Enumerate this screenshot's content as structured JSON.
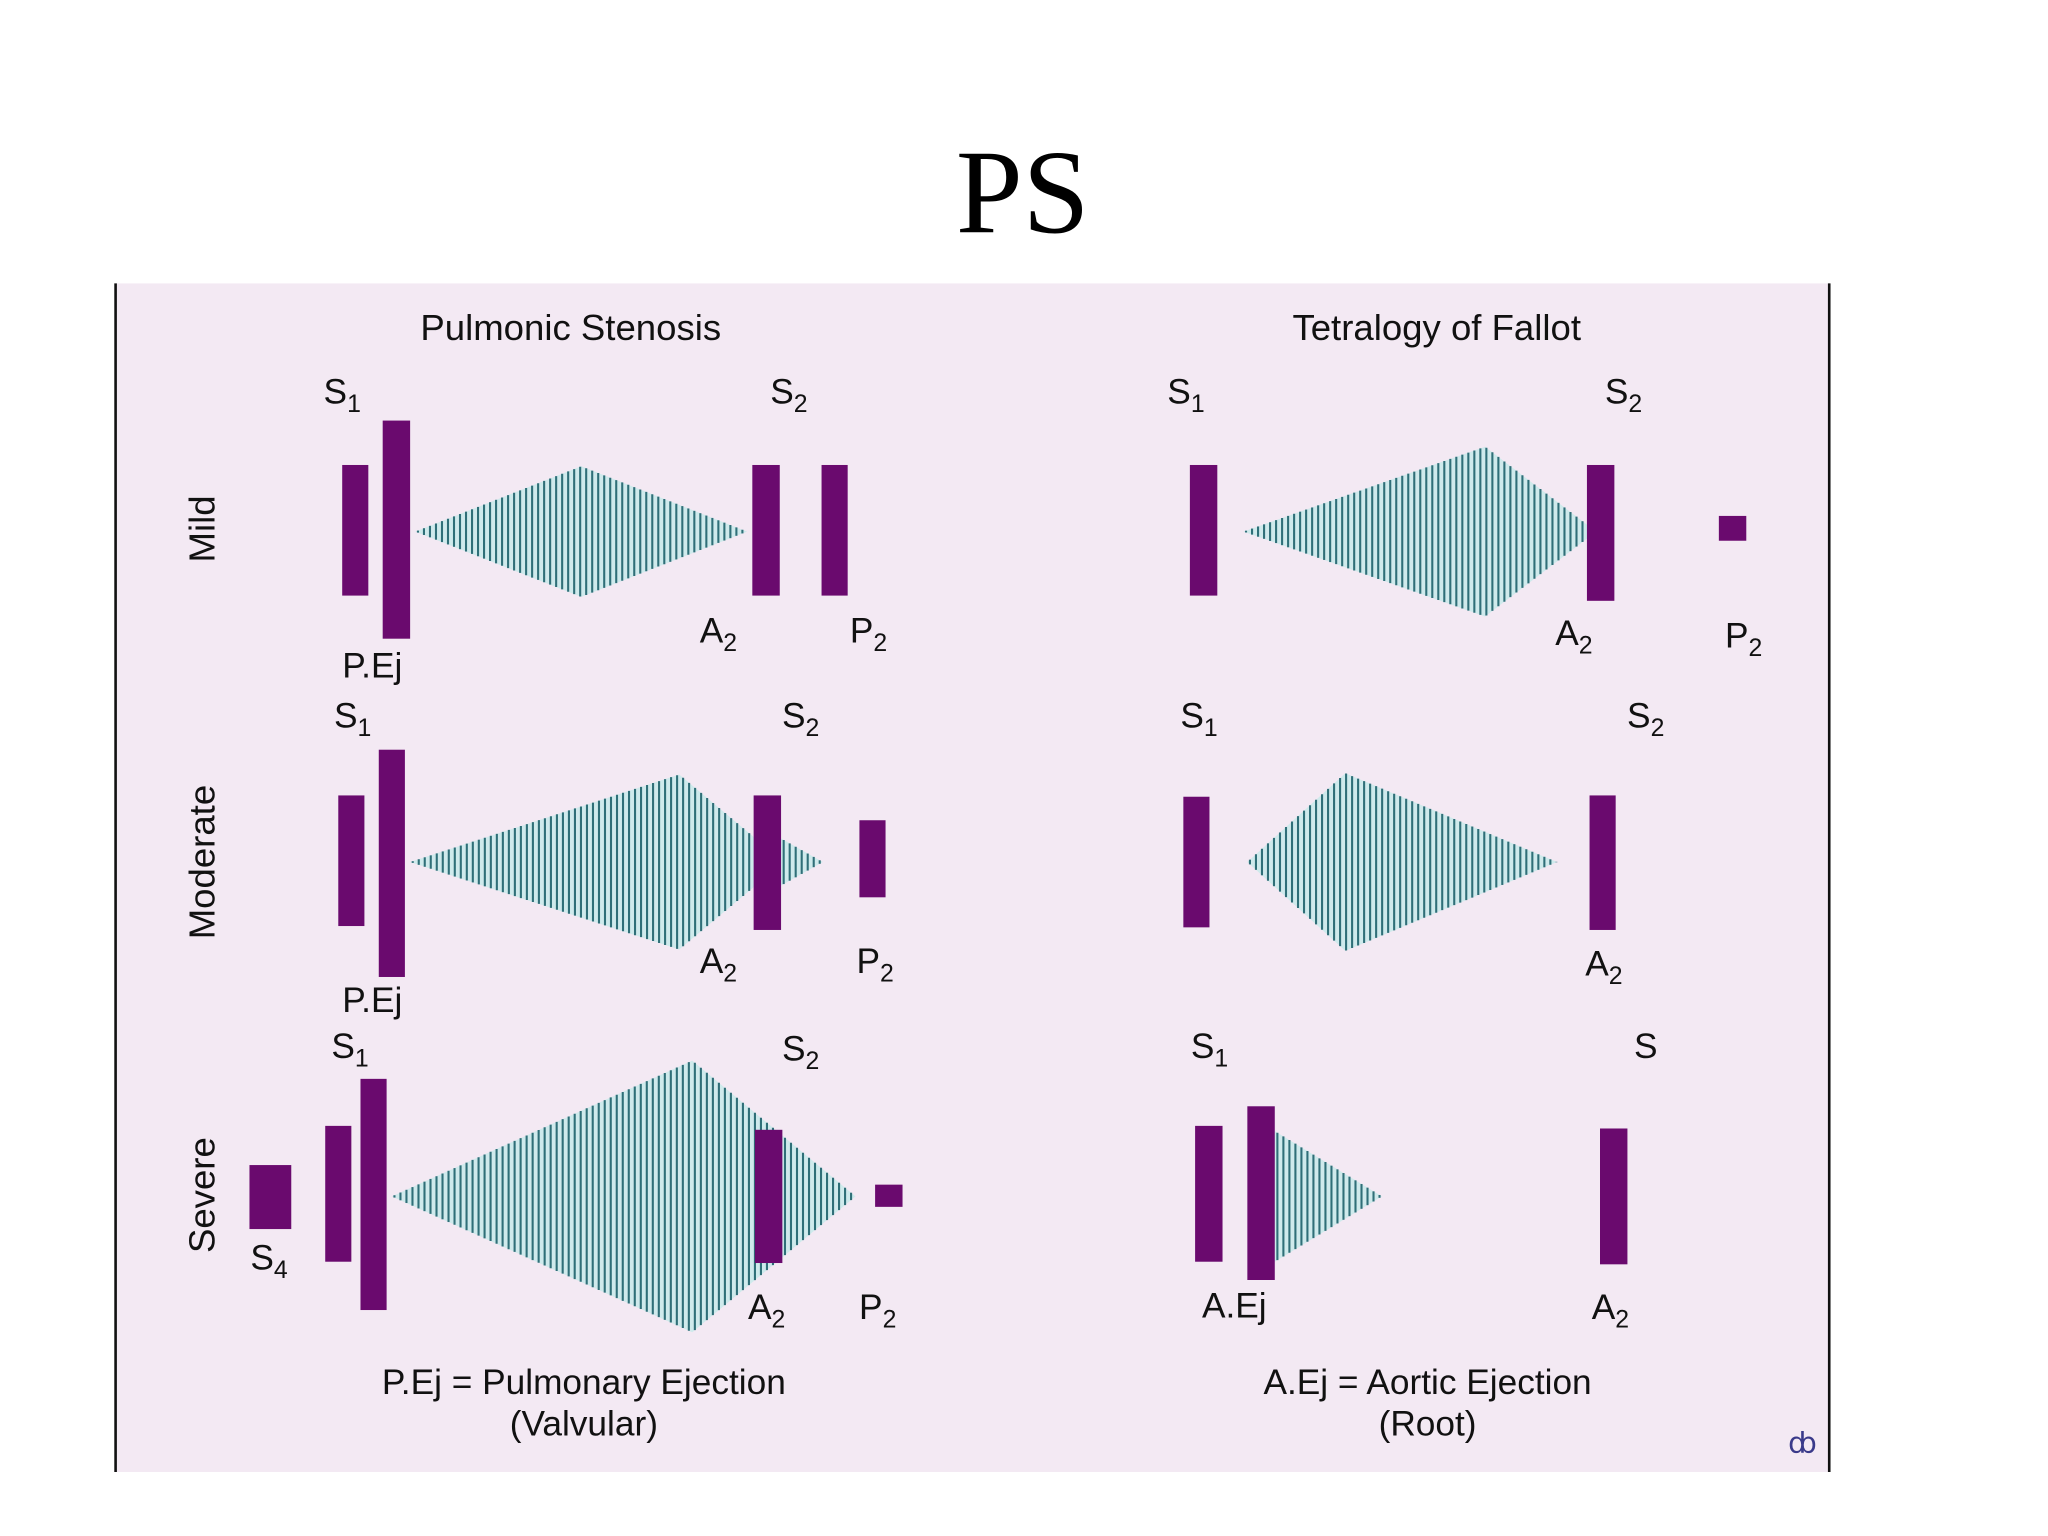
{
  "title": "PS",
  "row_labels": [
    "Mild",
    "Moderate",
    "Severe"
  ],
  "panels": [
    {
      "heading": "Pulmonic Stenosis",
      "rows": [
        [
          {
            "text": "S",
            "sub": "1"
          },
          {
            "text": "P.Ej"
          },
          {
            "text": "S",
            "sub": "2"
          },
          {
            "text": "A",
            "sub": "2"
          },
          {
            "text": "P",
            "sub": "2"
          }
        ],
        [
          {
            "text": "S",
            "sub": "1"
          },
          {
            "text": "S",
            "sub": "2"
          },
          {
            "text": "A",
            "sub": "2"
          },
          {
            "text": "P",
            "sub": "2"
          },
          {
            "text": "P.Ej"
          }
        ],
        [
          {
            "text": "S",
            "sub": "1"
          },
          {
            "text": "S",
            "sub": "2"
          },
          {
            "text": "S",
            "sub": "4"
          },
          {
            "text": "A",
            "sub": "2"
          },
          {
            "text": "P",
            "sub": "2"
          }
        ]
      ],
      "footnote": [
        "P.Ej = Pulmonary Ejection",
        "(Valvular)"
      ]
    },
    {
      "heading": "Tetralogy of Fallot",
      "rows": [
        [
          {
            "text": "S",
            "sub": "1"
          },
          {
            "text": "S",
            "sub": "2"
          },
          {
            "text": "A",
            "sub": "2"
          },
          {
            "text": "P",
            "sub": "2"
          }
        ],
        [
          {
            "text": "S",
            "sub": "1"
          },
          {
            "text": "S",
            "sub": "2"
          },
          {
            "text": "A",
            "sub": "2"
          }
        ],
        [
          {
            "text": "S",
            "sub": "1"
          },
          {
            "text": "S"
          },
          {
            "text": "A.Ej"
          },
          {
            "text": "A",
            "sub": "2"
          }
        ]
      ],
      "footnote": [
        "A.Ej = Aortic Ejection",
        "(Root)"
      ]
    }
  ]
}
